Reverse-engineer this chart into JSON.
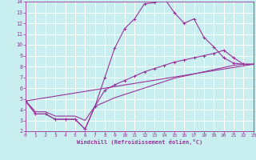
{
  "xlabel": "Windchill (Refroidissement éolien,°C)",
  "bg_color": "#c8eef0",
  "line_color": "#993399",
  "grid_color": "#ffffff",
  "xmin": 0,
  "xmax": 23,
  "ymin": 2,
  "ymax": 14,
  "yticks": [
    2,
    3,
    4,
    5,
    6,
    7,
    8,
    9,
    10,
    11,
    12,
    13,
    14
  ],
  "xticks": [
    0,
    1,
    2,
    3,
    4,
    5,
    6,
    7,
    8,
    9,
    10,
    11,
    12,
    13,
    14,
    15,
    16,
    17,
    18,
    19,
    20,
    21,
    22,
    23
  ],
  "series1_x": [
    0,
    1,
    2,
    3,
    4,
    5,
    6,
    7,
    8,
    9,
    10,
    11,
    12,
    13,
    14,
    15,
    16,
    17,
    18,
    19,
    20,
    21,
    22,
    23
  ],
  "series1_y": [
    4.8,
    3.6,
    3.6,
    3.1,
    3.1,
    3.1,
    2.2,
    4.3,
    7.0,
    9.7,
    11.5,
    12.4,
    13.8,
    13.9,
    14.3,
    13.0,
    12.0,
    12.4,
    10.7,
    9.8,
    8.8,
    8.3,
    8.2,
    8.2
  ],
  "series2_x": [
    0,
    1,
    2,
    3,
    4,
    5,
    6,
    7,
    8,
    9,
    10,
    11,
    12,
    13,
    14,
    15,
    16,
    17,
    18,
    19,
    20,
    21,
    22,
    23
  ],
  "series2_y": [
    4.8,
    3.6,
    3.6,
    3.1,
    3.1,
    3.1,
    2.2,
    4.3,
    5.8,
    6.3,
    6.7,
    7.1,
    7.5,
    7.8,
    8.1,
    8.4,
    8.6,
    8.8,
    9.0,
    9.2,
    9.5,
    8.8,
    8.2,
    8.2
  ],
  "series3_x": [
    0,
    1,
    2,
    3,
    4,
    5,
    6,
    7,
    8,
    9,
    10,
    11,
    12,
    13,
    14,
    15,
    16,
    17,
    18,
    19,
    20,
    21,
    22,
    23
  ],
  "series3_y": [
    4.8,
    3.8,
    3.8,
    3.4,
    3.4,
    3.4,
    3.0,
    4.3,
    4.7,
    5.1,
    5.4,
    5.7,
    6.0,
    6.3,
    6.6,
    6.9,
    7.1,
    7.3,
    7.5,
    7.7,
    7.9,
    8.1,
    8.2,
    8.2
  ],
  "series4_x": [
    0,
    23
  ],
  "series4_y": [
    4.8,
    8.2
  ]
}
